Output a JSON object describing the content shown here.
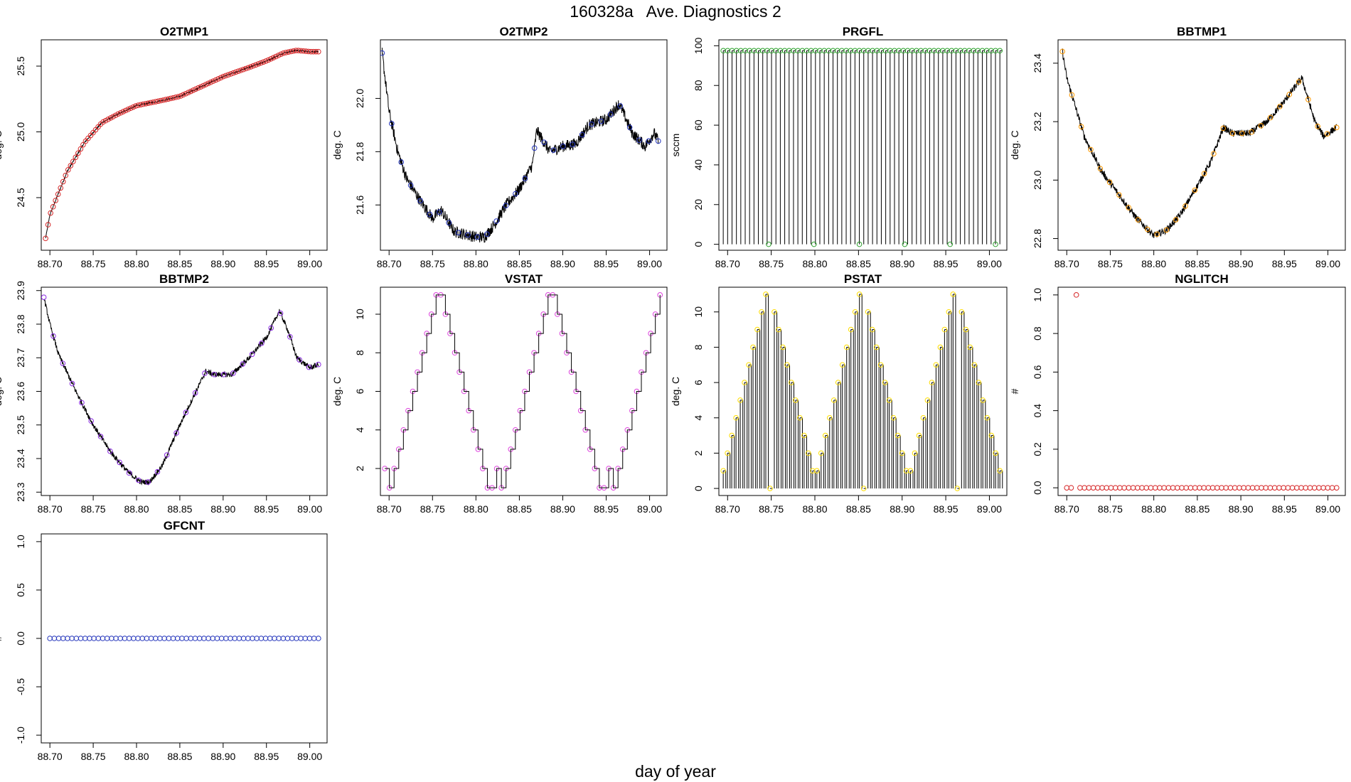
{
  "figure": {
    "title": "160328a   Ave. Diagnostics 2",
    "xlabel": "day of year"
  },
  "chart_data": [
    {
      "type": "line",
      "title": "O2TMP1",
      "ylabel": "deg. C",
      "xlim": [
        88.69,
        89.02
      ],
      "ylim": [
        24.1,
        25.7
      ],
      "x_ticks": [
        "88.70",
        "88.75",
        "88.80",
        "88.85",
        "88.90",
        "88.95",
        "89.00"
      ],
      "y_ticks": [
        "24.5",
        "25.0",
        "25.5"
      ],
      "marker_color": "#d62728",
      "anchors": [
        [
          88.695,
          24.19
        ],
        [
          88.7,
          24.37
        ],
        [
          88.72,
          24.7
        ],
        [
          88.74,
          24.92
        ],
        [
          88.76,
          25.07
        ],
        [
          88.78,
          25.14
        ],
        [
          88.8,
          25.2
        ],
        [
          88.83,
          25.24
        ],
        [
          88.85,
          25.27
        ],
        [
          88.87,
          25.33
        ],
        [
          88.9,
          25.42
        ],
        [
          88.93,
          25.49
        ],
        [
          88.95,
          25.54
        ],
        [
          88.97,
          25.6
        ],
        [
          88.985,
          25.62
        ],
        [
          89.0,
          25.61
        ],
        [
          89.01,
          25.61
        ]
      ],
      "noise": 0.006,
      "markers": "dense"
    },
    {
      "type": "line",
      "title": "O2TMP2",
      "ylabel": "deg. C",
      "xlim": [
        88.69,
        89.02
      ],
      "ylim": [
        21.43,
        22.22
      ],
      "x_ticks": [
        "88.70",
        "88.75",
        "88.80",
        "88.85",
        "88.90",
        "88.95",
        "89.00"
      ],
      "y_ticks": [
        "21.6",
        "21.8",
        "22.0"
      ],
      "marker_color": "#2233bb",
      "anchors": [
        [
          88.692,
          22.17
        ],
        [
          88.7,
          21.95
        ],
        [
          88.71,
          21.8
        ],
        [
          88.72,
          21.7
        ],
        [
          88.735,
          21.62
        ],
        [
          88.75,
          21.55
        ],
        [
          88.76,
          21.58
        ],
        [
          88.775,
          21.5
        ],
        [
          88.8,
          21.48
        ],
        [
          88.81,
          21.48
        ],
        [
          88.82,
          21.52
        ],
        [
          88.835,
          21.6
        ],
        [
          88.85,
          21.66
        ],
        [
          88.865,
          21.75
        ],
        [
          88.87,
          21.88
        ],
        [
          88.885,
          21.8
        ],
        [
          88.9,
          21.82
        ],
        [
          88.915,
          21.83
        ],
        [
          88.93,
          21.9
        ],
        [
          88.95,
          21.92
        ],
        [
          88.965,
          21.98
        ],
        [
          88.98,
          21.87
        ],
        [
          88.995,
          21.82
        ],
        [
          89.005,
          21.87
        ],
        [
          89.01,
          21.84
        ]
      ],
      "noise": 0.022,
      "markers": "sparse"
    },
    {
      "type": "pulse",
      "title": "PRGFL",
      "ylabel": "sccm",
      "xlim": [
        88.69,
        89.02
      ],
      "ylim": [
        -3,
        103
      ],
      "x_ticks": [
        "88.70",
        "88.75",
        "88.80",
        "88.85",
        "88.90",
        "88.95",
        "89.00"
      ],
      "y_ticks": [
        "0",
        "20",
        "40",
        "60",
        "80",
        "100"
      ],
      "marker_color": "#2ca02c",
      "high": 97.5,
      "low": 0,
      "low_points": [
        88.747,
        88.799,
        88.851,
        88.903,
        88.955,
        89.007
      ]
    },
    {
      "type": "line",
      "title": "BBTMP1",
      "ylabel": "deg. C",
      "xlim": [
        88.69,
        89.02
      ],
      "ylim": [
        22.76,
        23.48
      ],
      "x_ticks": [
        "88.70",
        "88.75",
        "88.80",
        "88.85",
        "88.90",
        "88.95",
        "89.00"
      ],
      "y_ticks": [
        "22.8",
        "23.0",
        "23.2",
        "23.4"
      ],
      "marker_color": "#ff9900",
      "anchors": [
        [
          88.695,
          23.44
        ],
        [
          88.7,
          23.35
        ],
        [
          88.71,
          23.25
        ],
        [
          88.72,
          23.15
        ],
        [
          88.74,
          23.03
        ],
        [
          88.76,
          22.95
        ],
        [
          88.78,
          22.87
        ],
        [
          88.8,
          22.81
        ],
        [
          88.815,
          22.83
        ],
        [
          88.83,
          22.88
        ],
        [
          88.85,
          22.98
        ],
        [
          88.865,
          23.06
        ],
        [
          88.88,
          23.18
        ],
        [
          88.89,
          23.16
        ],
        [
          88.91,
          23.16
        ],
        [
          88.93,
          23.2
        ],
        [
          88.95,
          23.27
        ],
        [
          88.965,
          23.33
        ],
        [
          88.97,
          23.35
        ],
        [
          88.985,
          23.2
        ],
        [
          88.995,
          23.15
        ],
        [
          89.01,
          23.18
        ]
      ],
      "noise": 0.012,
      "markers": "sparse"
    },
    {
      "type": "line",
      "title": "BBTMP2",
      "ylabel": "deg. C",
      "xlim": [
        88.69,
        89.02
      ],
      "ylim": [
        23.29,
        23.91
      ],
      "x_ticks": [
        "88.70",
        "88.75",
        "88.80",
        "88.85",
        "88.90",
        "88.95",
        "89.00"
      ],
      "y_ticks": [
        "23.3",
        "23.4",
        "23.5",
        "23.6",
        "23.7",
        "23.8",
        "23.9"
      ],
      "marker_color": "#8a2be2",
      "anchors": [
        [
          88.693,
          23.88
        ],
        [
          88.7,
          23.8
        ],
        [
          88.71,
          23.71
        ],
        [
          88.73,
          23.6
        ],
        [
          88.75,
          23.5
        ],
        [
          88.77,
          23.42
        ],
        [
          88.79,
          23.36
        ],
        [
          88.805,
          23.33
        ],
        [
          88.815,
          23.33
        ],
        [
          88.83,
          23.38
        ],
        [
          88.85,
          23.5
        ],
        [
          88.865,
          23.58
        ],
        [
          88.88,
          23.66
        ],
        [
          88.89,
          23.65
        ],
        [
          88.91,
          23.65
        ],
        [
          88.93,
          23.7
        ],
        [
          88.95,
          23.76
        ],
        [
          88.965,
          23.84
        ],
        [
          88.975,
          23.78
        ],
        [
          88.985,
          23.7
        ],
        [
          89.0,
          23.67
        ],
        [
          89.01,
          23.68
        ]
      ],
      "noise": 0.008,
      "markers": "sparse"
    },
    {
      "type": "step",
      "title": "VSTAT",
      "ylabel": "deg. C",
      "xlim": [
        88.69,
        89.02
      ],
      "ylim": [
        0.6,
        11.4
      ],
      "x_ticks": [
        "88.70",
        "88.75",
        "88.80",
        "88.85",
        "88.90",
        "88.95",
        "89.00"
      ],
      "y_ticks": [
        "2",
        "4",
        "6",
        "8",
        "10"
      ],
      "marker_color": "#dd44dd",
      "x_start": 88.695,
      "x_end": 89.012,
      "n_points": 60,
      "cycle": [
        2,
        1,
        2,
        3,
        4,
        5,
        6,
        7,
        8,
        9,
        10,
        11,
        11,
        10,
        9,
        8,
        7,
        6,
        5,
        4,
        3,
        2,
        1,
        1
      ]
    },
    {
      "type": "pulse-step",
      "title": "PSTAT",
      "ylabel": "deg. C",
      "xlim": [
        88.69,
        89.02
      ],
      "ylim": [
        -0.4,
        11.4
      ],
      "x_ticks": [
        "88.70",
        "88.75",
        "88.80",
        "88.85",
        "88.90",
        "88.95",
        "89.00"
      ],
      "y_ticks": [
        "0",
        "2",
        "4",
        "6",
        "8",
        "10"
      ],
      "marker_color": "#ffdd00",
      "x_start": 88.695,
      "x_end": 89.012,
      "n_points": 66,
      "cycle": [
        1,
        2,
        3,
        4,
        5,
        6,
        7,
        8,
        9,
        10,
        11,
        0,
        10,
        9,
        8,
        7,
        6,
        5,
        4,
        3,
        2,
        1
      ]
    },
    {
      "type": "scatter",
      "title": "NGLITCH",
      "ylabel": "#",
      "xlim": [
        88.69,
        89.02
      ],
      "ylim": [
        -0.04,
        1.04
      ],
      "x_ticks": [
        "88.70",
        "88.75",
        "88.80",
        "88.85",
        "88.90",
        "88.95",
        "89.00"
      ],
      "y_ticks": [
        "0.0",
        "0.2",
        "0.4",
        "0.6",
        "0.8",
        "1.0"
      ],
      "marker_color": "#d62728",
      "x_start": 88.7,
      "x_end": 89.01,
      "n_points": 62,
      "default_value": 0,
      "exceptions": [
        [
          88.711,
          1
        ]
      ]
    },
    {
      "type": "scatter",
      "title": "GFCNT",
      "ylabel": "#",
      "xlim": [
        88.69,
        89.02
      ],
      "ylim": [
        -1.08,
        1.08
      ],
      "x_ticks": [
        "88.70",
        "88.75",
        "88.80",
        "88.85",
        "88.90",
        "88.95",
        "89.00"
      ],
      "y_ticks": [
        "-1.0",
        "-0.5",
        "0.0",
        "0.5",
        "1.0"
      ],
      "marker_color": "#2233bb",
      "x_start": 88.7,
      "x_end": 89.01,
      "n_points": 62,
      "default_value": 0,
      "exceptions": []
    }
  ]
}
